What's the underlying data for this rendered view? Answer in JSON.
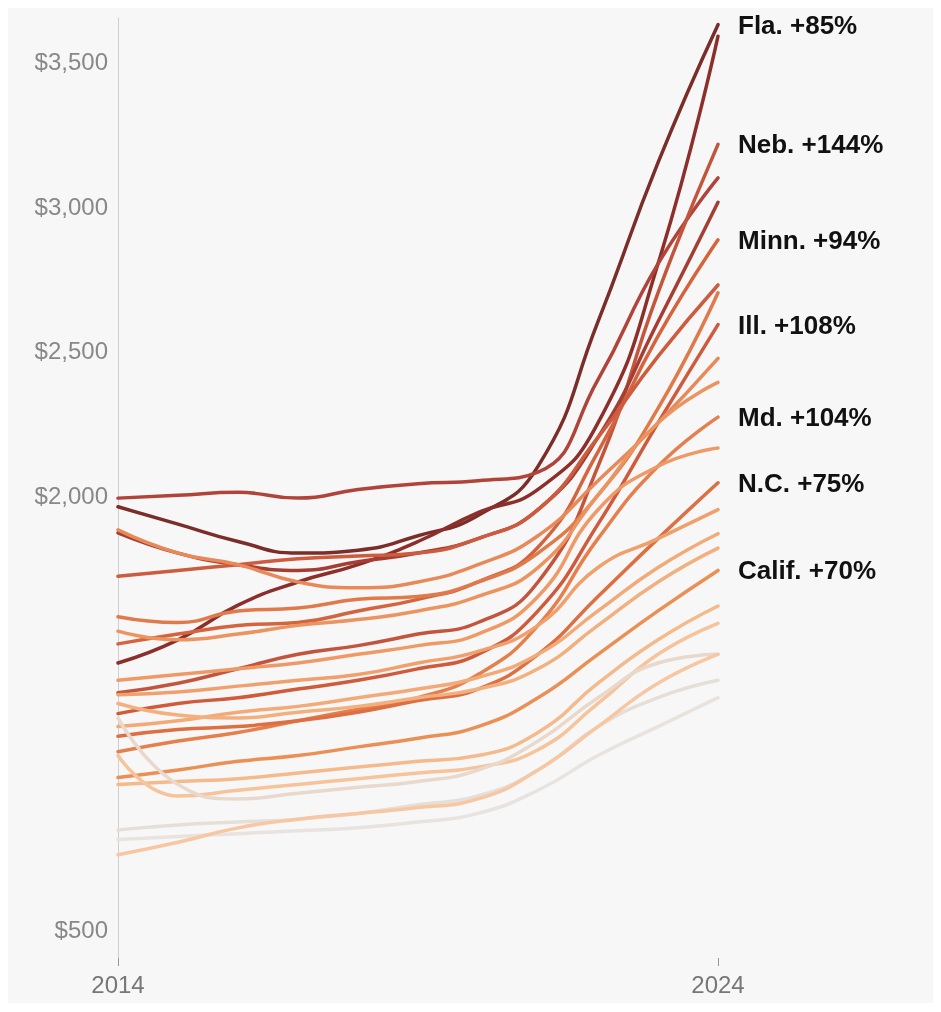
{
  "chart_data": {
    "type": "line",
    "x": [
      2014,
      2015,
      2016,
      2017,
      2018,
      2019,
      2020,
      2021,
      2022,
      2023,
      2024
    ],
    "xlim": [
      2014,
      2024
    ],
    "xticks": [
      2014,
      2024
    ],
    "ylim": [
      400,
      3650
    ],
    "yticks": [
      {
        "value": 500,
        "label": "$500"
      },
      {
        "value": 2000,
        "label": "$2,000"
      },
      {
        "value": 2500,
        "label": "$2,500"
      },
      {
        "value": 3000,
        "label": "$3,000"
      },
      {
        "value": 3500,
        "label": "$3,500"
      }
    ],
    "grid": false,
    "legend": "right",
    "line_style": "solid",
    "series": [
      {
        "name": "Fla. +85%",
        "color": "#7b2d2a",
        "values": [
          1960,
          1900,
          1840,
          1800,
          1810,
          1860,
          1930,
          2100,
          2600,
          3150,
          3627
        ]
      },
      {
        "color": "#8c2f2b",
        "values": [
          1420,
          1500,
          1620,
          1700,
          1760,
          1840,
          1940,
          2020,
          2250,
          2800,
          3587
        ]
      },
      {
        "color": "#b1443a",
        "values": [
          1990,
          2000,
          2010,
          1990,
          2020,
          2040,
          2050,
          2080,
          2400,
          2800,
          3097
        ]
      },
      {
        "name": "Neb. +144%",
        "color": "#c2553c",
        "values": [
          1317,
          1350,
          1400,
          1450,
          1480,
          1520,
          1560,
          1700,
          2100,
          2700,
          3213
        ]
      },
      {
        "color": "#a63d33",
        "values": [
          1870,
          1800,
          1760,
          1740,
          1770,
          1800,
          1850,
          1950,
          2200,
          2600,
          3013
        ]
      },
      {
        "name": "Minn. +94%",
        "color": "#d4643e",
        "values": [
          1486,
          1520,
          1550,
          1560,
          1600,
          1640,
          1700,
          1820,
          2150,
          2550,
          2883
        ]
      },
      {
        "color": "#cd5b3d",
        "values": [
          1720,
          1740,
          1760,
          1780,
          1790,
          1800,
          1850,
          1950,
          2200,
          2480,
          2727
        ]
      },
      {
        "name": "Ill. +108%",
        "color": "#cf5a3c",
        "values": [
          1245,
          1280,
          1300,
          1330,
          1360,
          1400,
          1450,
          1600,
          1900,
          2250,
          2590
        ]
      },
      {
        "color": "#e07a4a",
        "values": [
          1580,
          1560,
          1600,
          1610,
          1640,
          1650,
          1700,
          1800,
          2000,
          2300,
          2700
        ]
      },
      {
        "color": "#e8895a",
        "values": [
          1880,
          1800,
          1760,
          1700,
          1680,
          1700,
          1760,
          1860,
          2050,
          2250,
          2473
        ]
      },
      {
        "color": "#ec9460",
        "values": [
          1530,
          1500,
          1520,
          1550,
          1570,
          1600,
          1650,
          1750,
          2000,
          2250,
          2390
        ]
      },
      {
        "name": "Md. +104%",
        "color": "#e57f4c",
        "values": [
          1113,
          1150,
          1180,
          1220,
          1260,
          1300,
          1380,
          1550,
          1850,
          2100,
          2270
        ]
      },
      {
        "color": "#ef9a66",
        "values": [
          1360,
          1380,
          1400,
          1420,
          1450,
          1480,
          1520,
          1650,
          1950,
          2100,
          2163
        ]
      },
      {
        "name": "N.C. +75%",
        "color": "#dd6f42",
        "values": [
          1167,
          1190,
          1200,
          1220,
          1250,
          1290,
          1330,
          1450,
          1650,
          1850,
          2043
        ]
      },
      {
        "color": "#f0a06c",
        "values": [
          1310,
          1320,
          1340,
          1360,
          1380,
          1420,
          1460,
          1550,
          1750,
          1850,
          1950
        ]
      },
      {
        "color": "#f2aa78",
        "values": [
          1200,
          1220,
          1250,
          1270,
          1300,
          1330,
          1370,
          1450,
          1600,
          1750,
          1867
        ]
      },
      {
        "color": "#f3b07f",
        "values": [
          1280,
          1240,
          1230,
          1250,
          1270,
          1300,
          1330,
          1400,
          1550,
          1700,
          1817
        ]
      },
      {
        "name": "Calif. +70%",
        "color": "#eb9055",
        "values": [
          1024,
          1050,
          1080,
          1100,
          1130,
          1160,
          1200,
          1300,
          1450,
          1600,
          1740
        ]
      },
      {
        "color": "#f5ba8c",
        "values": [
          1000,
          1010,
          1020,
          1040,
          1060,
          1080,
          1100,
          1180,
          1350,
          1500,
          1617
        ]
      },
      {
        "color": "#f6c39a",
        "values": [
          1100,
          960,
          980,
          1000,
          1020,
          1040,
          1060,
          1120,
          1280,
          1450,
          1557
        ]
      },
      {
        "color": "#e9d9cc",
        "values": [
          1230,
          1000,
          950,
          970,
          990,
          1010,
          1050,
          1150,
          1300,
          1420,
          1450
        ]
      },
      {
        "color": "#e5dfd8",
        "values": [
          843,
          860,
          870,
          880,
          900,
          930,
          960,
          1050,
          1200,
          1300,
          1360
        ]
      },
      {
        "color": "#e8e3de",
        "values": [
          810,
          820,
          830,
          840,
          850,
          870,
          900,
          980,
          1100,
          1200,
          1300
        ]
      },
      {
        "color": "#f6c7a2",
        "values": [
          757,
          800,
          850,
          880,
          900,
          920,
          950,
          1050,
          1200,
          1350,
          1450
        ]
      }
    ]
  }
}
